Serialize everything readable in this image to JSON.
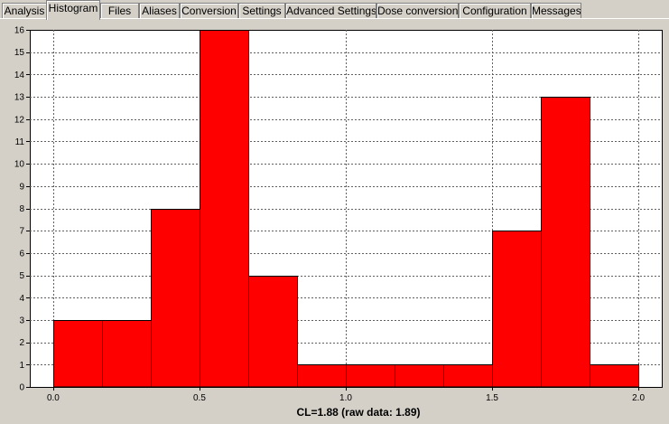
{
  "tabs": [
    {
      "label": "Analysis",
      "active": false
    },
    {
      "label": "Histogram",
      "active": true
    },
    {
      "label": "Files",
      "active": false
    },
    {
      "label": "Aliases",
      "active": false
    },
    {
      "label": "Conversion",
      "active": false
    },
    {
      "label": "Settings",
      "active": false
    },
    {
      "label": "Advanced Settings",
      "active": false
    },
    {
      "label": "Dose conversion",
      "active": false
    },
    {
      "label": "Configuration",
      "active": false
    },
    {
      "label": "Messages",
      "active": false
    }
  ],
  "chart_data": {
    "type": "bar",
    "title": "",
    "xlabel": "CL=1.88 (raw data: 1.89)",
    "ylabel": "",
    "xlim": [
      -0.08,
      2.08
    ],
    "ylim": [
      0,
      16
    ],
    "xticks": [
      "0.0",
      "0.5",
      "1.0",
      "1.5",
      "2.0"
    ],
    "xtick_values": [
      0.0,
      0.5,
      1.0,
      1.5,
      2.0
    ],
    "yticks": [
      0,
      1,
      2,
      3,
      4,
      5,
      6,
      7,
      8,
      9,
      10,
      11,
      12,
      13,
      14,
      15,
      16
    ],
    "bin_edges": [
      0.0,
      0.1667,
      0.3333,
      0.5,
      0.6667,
      0.8333,
      1.0,
      1.1667,
      1.3333,
      1.5,
      1.6667,
      1.8333,
      2.0
    ],
    "values": [
      3,
      3,
      8,
      16,
      5,
      1,
      1,
      1,
      1,
      7,
      13,
      1
    ],
    "bar_color": "#ff0000",
    "grid": true
  }
}
